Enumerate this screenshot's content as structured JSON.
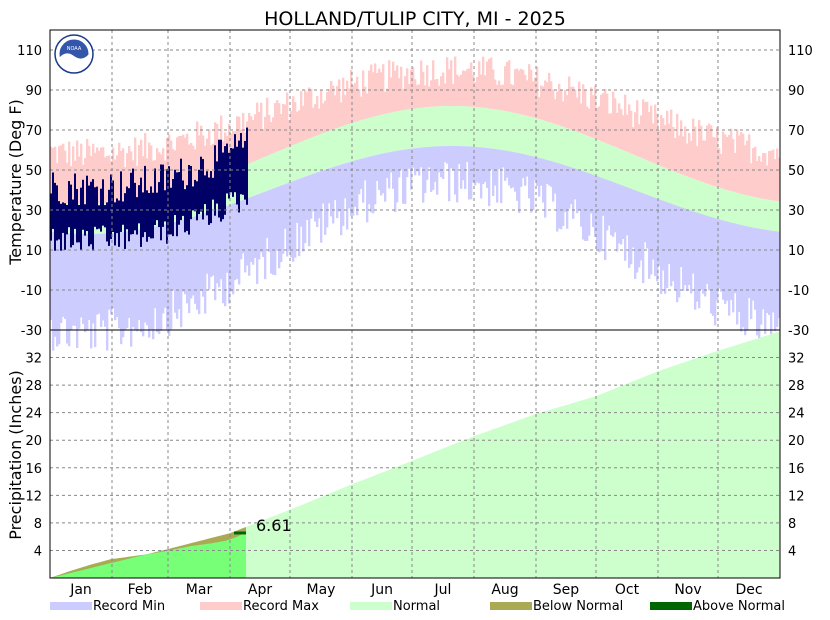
{
  "title": "HOLLAND/TULIP CITY, MI - 2025",
  "logo_text": "NOAA",
  "chart_data": [
    {
      "type": "area",
      "panel": "temperature",
      "ylabel": "Temperature (Deg F)",
      "ylim": [
        -30,
        120
      ],
      "yticks": [
        -30,
        -10,
        10,
        30,
        50,
        70,
        90,
        110
      ],
      "grid": true,
      "normal_high_range": [
        33,
        82
      ],
      "normal_low_range": [
        18,
        62
      ],
      "record_max_range": [
        58,
        100
      ],
      "record_min_range": [
        -20,
        55
      ],
      "observed_through_day": 98,
      "observed_temperature_range": [
        -5,
        78
      ]
    },
    {
      "type": "area",
      "panel": "precipitation",
      "ylabel": "Precipitation (Inches)",
      "ylim": [
        0,
        36
      ],
      "yticks": [
        4,
        8,
        12,
        16,
        20,
        24,
        28,
        32
      ],
      "grid": true,
      "annual_normal_total": 35.8,
      "observed_total": 6.61,
      "observed_total_label": "6.61",
      "observed_through_day": 98,
      "normal_cumulative": [
        [
          0,
          0
        ],
        [
          31,
          2.2
        ],
        [
          59,
          4.2
        ],
        [
          90,
          6.5
        ],
        [
          120,
          9.9
        ],
        [
          151,
          13.6
        ],
        [
          181,
          17.0
        ],
        [
          212,
          20.6
        ],
        [
          243,
          23.8
        ],
        [
          273,
          26.4
        ],
        [
          304,
          30.0
        ],
        [
          334,
          33.0
        ],
        [
          365,
          35.8
        ]
      ],
      "observed_cumulative": [
        [
          0,
          0
        ],
        [
          10,
          1.0
        ],
        [
          20,
          1.9
        ],
        [
          30,
          2.7
        ],
        [
          40,
          3.1
        ],
        [
          50,
          3.5
        ],
        [
          60,
          4.0
        ],
        [
          70,
          4.6
        ],
        [
          80,
          5.0
        ],
        [
          88,
          5.4
        ],
        [
          93,
          5.9
        ],
        [
          98,
          6.61
        ]
      ]
    }
  ],
  "months": [
    "Jan",
    "Feb",
    "Mar",
    "Apr",
    "May",
    "Jun",
    "Jul",
    "Aug",
    "Sep",
    "Oct",
    "Nov",
    "Dec"
  ],
  "legend": [
    {
      "label": "Record Min",
      "color": "#ccccff"
    },
    {
      "label": "Record Max",
      "color": "#ffcccc"
    },
    {
      "label": "Normal",
      "color": "#ccffcc"
    },
    {
      "label": "Below Normal",
      "color": "#aaaa55"
    },
    {
      "label": "Above Normal",
      "color": "#006600"
    }
  ],
  "colors": {
    "record_min": "#ccccff",
    "record_max": "#ffcccc",
    "normal": "#ccffcc",
    "observed_temp": "#000066",
    "below_normal": "#aaaa55",
    "above_normal": "#006600",
    "observed_precip_fill": "#77ff77",
    "grid": "#888888"
  }
}
